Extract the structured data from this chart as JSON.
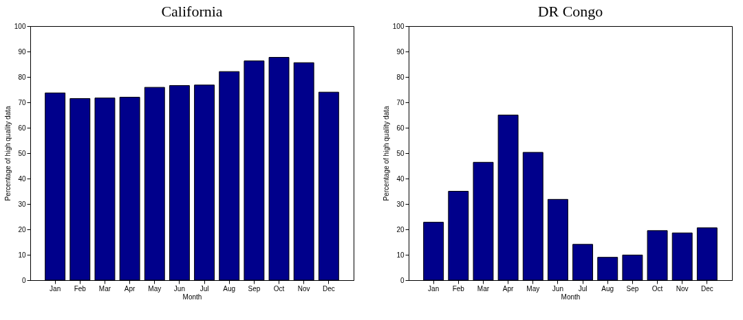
{
  "chart_data": [
    {
      "type": "bar",
      "title": "California",
      "xlabel": "Month",
      "ylabel": "Percentage of high quality data",
      "categories": [
        "Jan",
        "Feb",
        "Mar",
        "Apr",
        "May",
        "Jun",
        "Jul",
        "Aug",
        "Sep",
        "Oct",
        "Nov",
        "Dec"
      ],
      "values": [
        73.7,
        71.5,
        71.7,
        72.0,
        75.9,
        76.6,
        76.8,
        82.1,
        86.3,
        87.7,
        85.6,
        74.0
      ],
      "color": "#00008b",
      "ylim": [
        0,
        100
      ],
      "yticks": [
        0,
        10,
        20,
        30,
        40,
        50,
        60,
        70,
        80,
        90,
        100
      ],
      "grid": false
    },
    {
      "type": "bar",
      "title": "DR Congo",
      "xlabel": "Month",
      "ylabel": "Percentage of high quality data",
      "categories": [
        "Jan",
        "Feb",
        "Mar",
        "Apr",
        "May",
        "Jun",
        "Jul",
        "Aug",
        "Sep",
        "Oct",
        "Nov",
        "Dec"
      ],
      "values": [
        22.8,
        35.0,
        46.4,
        65.0,
        50.3,
        31.8,
        14.1,
        9.0,
        9.9,
        19.5,
        18.6,
        20.6
      ],
      "color": "#00008b",
      "ylim": [
        0,
        100
      ],
      "yticks": [
        0,
        10,
        20,
        30,
        40,
        50,
        60,
        70,
        80,
        90,
        100
      ],
      "grid": false
    }
  ]
}
